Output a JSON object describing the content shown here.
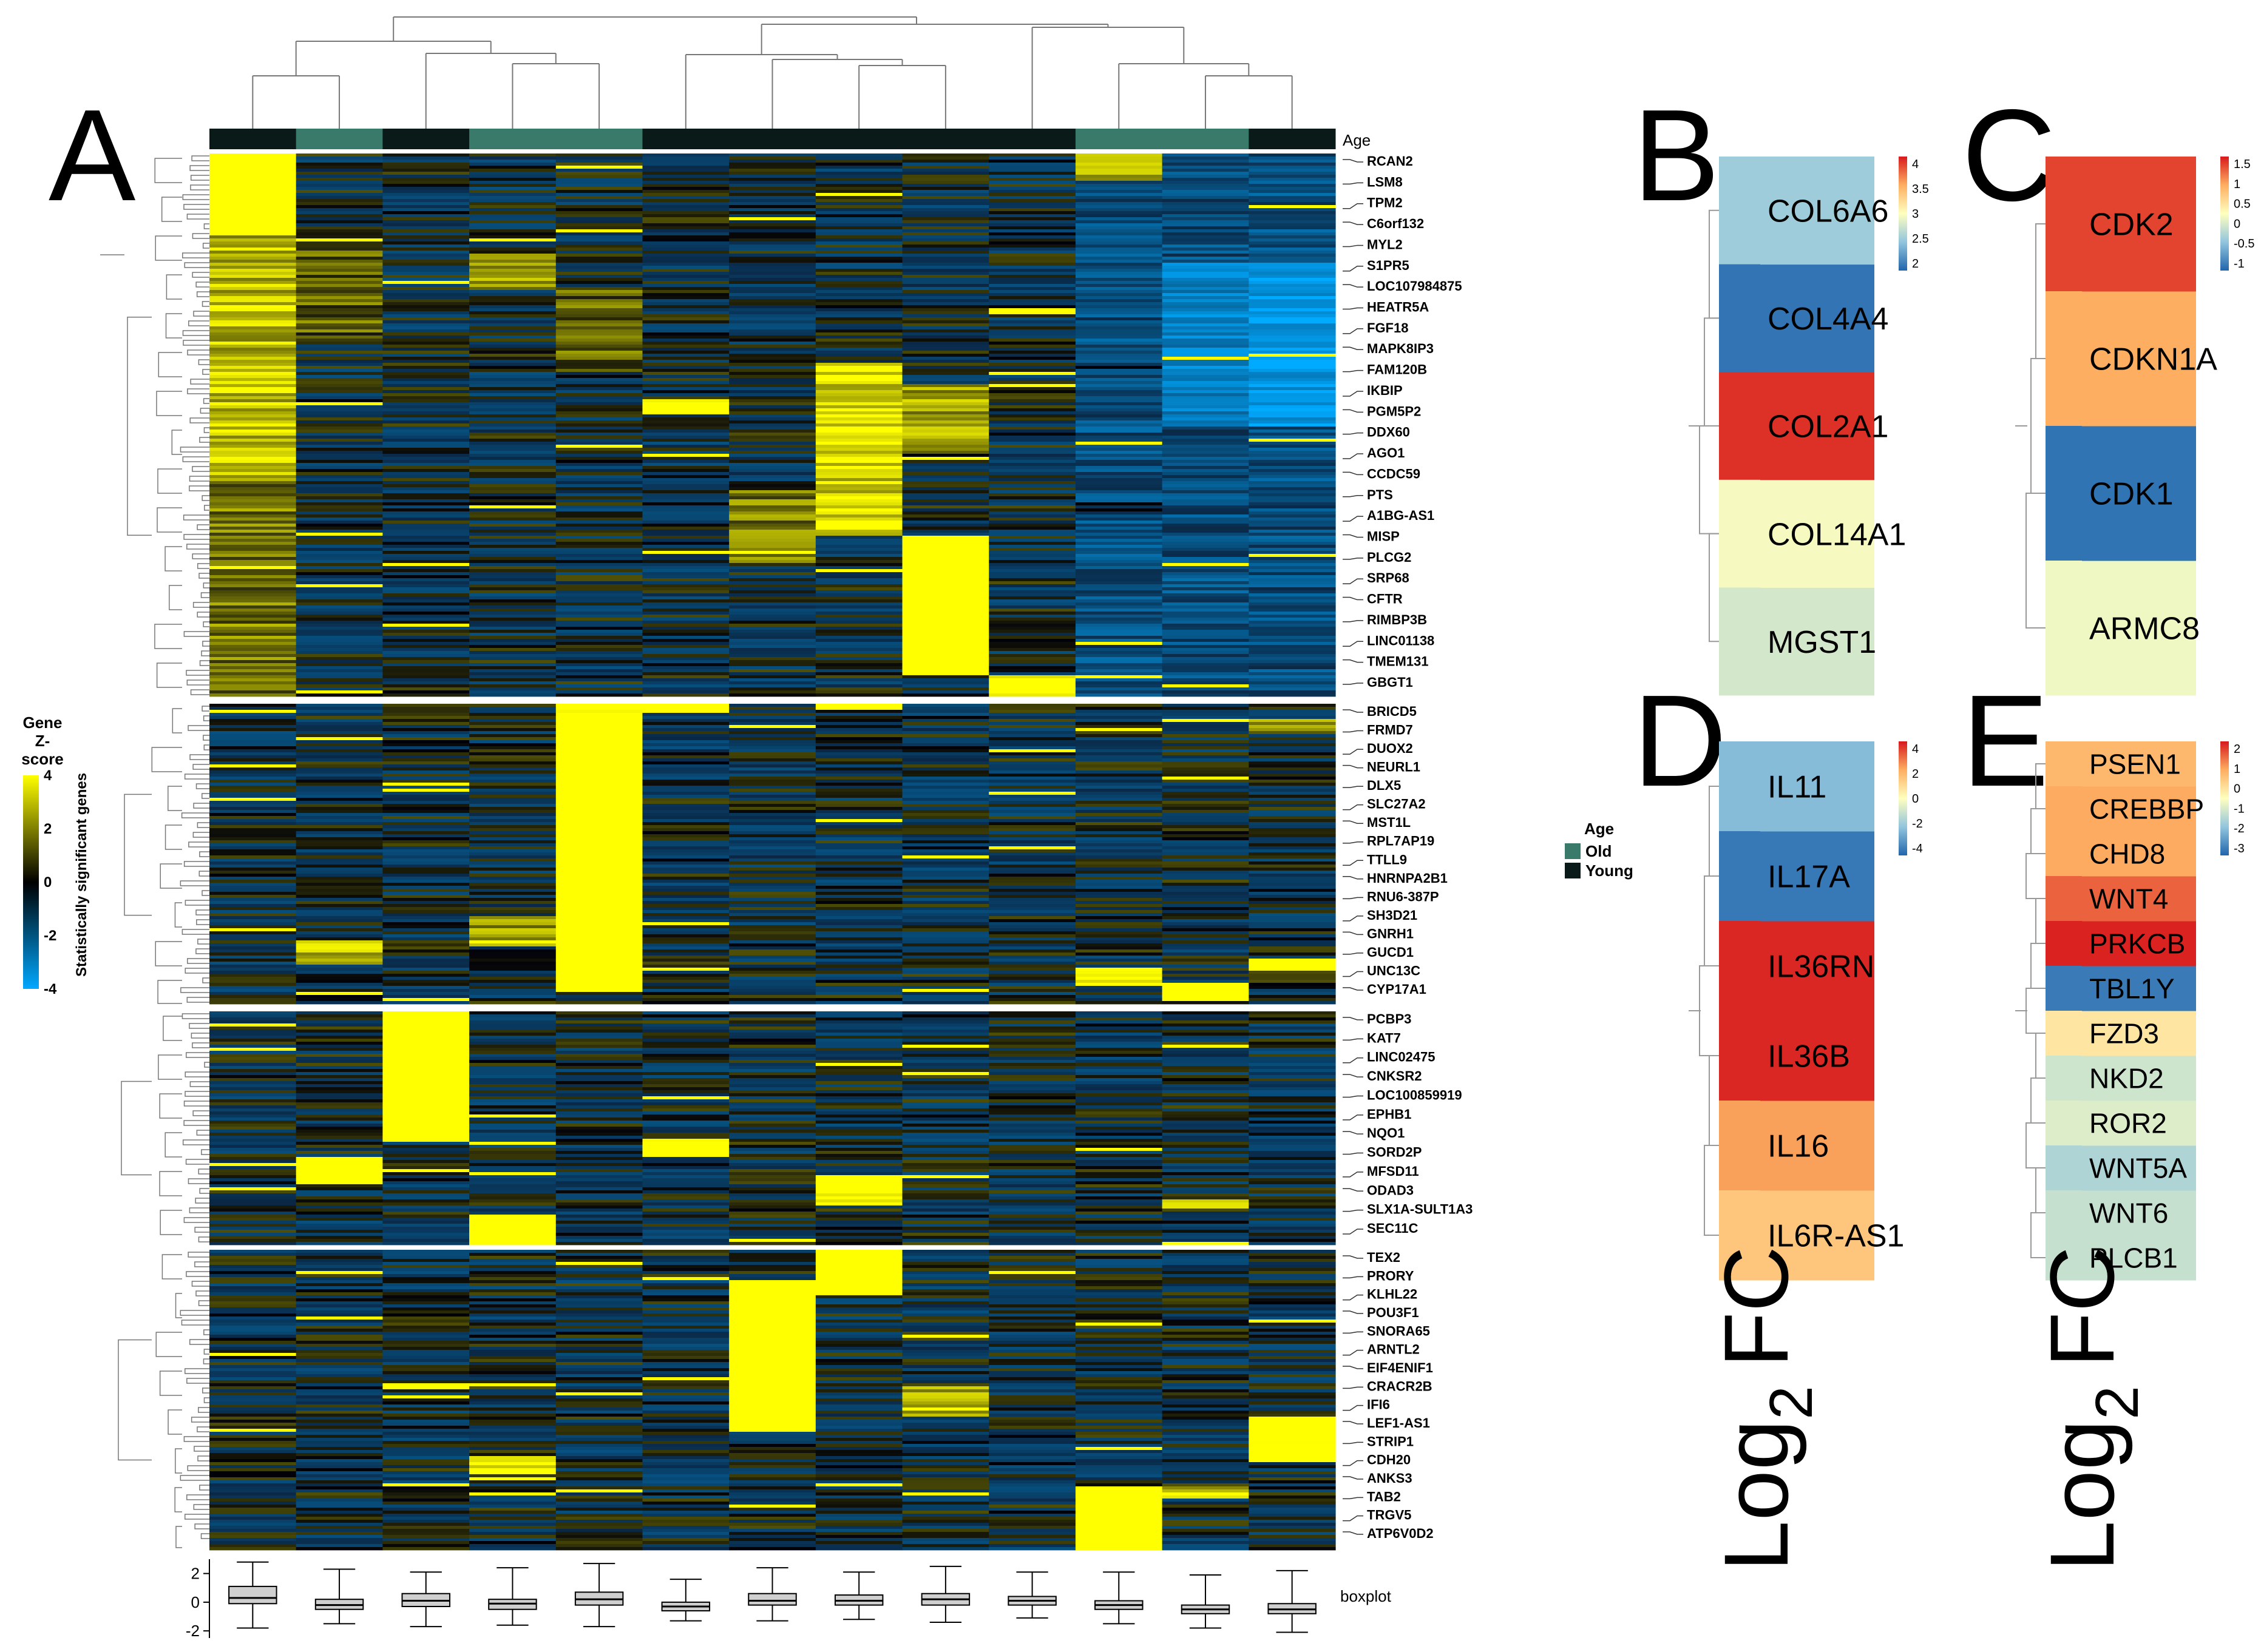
{
  "figure": {
    "panel_letters": [
      "A",
      "B",
      "C",
      "D",
      "E"
    ],
    "axis_title": "Log",
    "axis_subscript": "2",
    "axis_suffix": "FC",
    "age_track_label": "Age",
    "boxplot_label": "boxplot"
  },
  "colors": {
    "old": "#3a7a6b",
    "young": "#0a1a18",
    "heat_low": "#00a8ff",
    "heat_mid": "#000000",
    "heat_high": "#ffff00"
  },
  "chart_data": [
    {
      "type": "heatmap",
      "panel": "A",
      "colorbar_title_lines": [
        "Gene",
        "Z-",
        "score"
      ],
      "colorbar_ticks": [
        "4",
        "2",
        "0",
        "-2",
        "-4"
      ],
      "side_label": "Statistically significant genes",
      "legend": {
        "title": "Age",
        "entries": [
          "Old",
          "Young"
        ]
      },
      "sample_groups": [
        "Young",
        "Old",
        "Young",
        "Old",
        "Old",
        "Young",
        "Young",
        "Young",
        "Young",
        "Young",
        "Old",
        "Old",
        "Young"
      ],
      "clusters": [
        {
          "genes": [
            "RCAN2",
            "LSM8",
            "TPM2",
            "C6orf132",
            "MYL2",
            "S1PR5",
            "LOC107984875",
            "HEATR5A",
            "FGF18",
            "MAPK8IP3",
            "FAM120B",
            "IKBIP",
            "PGM5P2",
            "DDX60",
            "AGO1",
            "CCDC59",
            "PTS",
            "A1BG-AS1",
            "MISP",
            "PLCG2",
            "SRP68",
            "CFTR",
            "RIMBP3B",
            "LINC01138",
            "TMEM131",
            "GBGT1"
          ]
        },
        {
          "genes": [
            "BRICD5",
            "FRMD7",
            "DUOX2",
            "NEURL1",
            "DLX5",
            "SLC27A2",
            "MST1L",
            "RPL7AP19",
            "TTLL9",
            "HNRNPA2B1",
            "RNU6-387P",
            "SH3D21",
            "GNRH1",
            "GUCD1",
            "UNC13C",
            "CYP17A1"
          ]
        },
        {
          "genes": [
            "PCBP3",
            "KAT7",
            "LINC02475",
            "CNKSR2",
            "LOC100859919",
            "EPHB1",
            "NQO1",
            "SORD2P",
            "MFSD11",
            "ODAD3",
            "SLX1A-SULT1A3",
            "SEC11C"
          ]
        },
        {
          "genes": [
            "TEX2",
            "PRORY",
            "KLHL22",
            "POU3F1",
            "SNORA65",
            "ARNTL2",
            "EIF4ENIF1",
            "CRACR2B",
            "IFI6",
            "LEF1-AS1",
            "STRIP1",
            "CDH20",
            "ANKS3",
            "TAB2",
            "TRGV5",
            "ATP6V0D2"
          ]
        }
      ],
      "boxplot": {
        "yticks": [
          "2",
          "0",
          "-2"
        ],
        "ylim": [
          -2.5,
          3
        ],
        "medians": [
          0.3,
          -0.2,
          0.1,
          -0.1,
          0.2,
          -0.3,
          0.1,
          0.1,
          0.2,
          0.1,
          -0.2,
          -0.5,
          -0.5
        ],
        "q1": [
          -0.1,
          -0.5,
          -0.3,
          -0.5,
          -0.2,
          -0.6,
          -0.2,
          -0.2,
          -0.2,
          -0.2,
          -0.5,
          -0.8,
          -0.8
        ],
        "q3": [
          1.1,
          0.2,
          0.6,
          0.2,
          0.7,
          0.0,
          0.6,
          0.5,
          0.6,
          0.4,
          0.1,
          -0.2,
          -0.1
        ],
        "whisker_low": [
          -1.8,
          -1.5,
          -1.7,
          -1.6,
          -1.7,
          -1.3,
          -1.3,
          -1.2,
          -1.4,
          -1.1,
          -1.5,
          -1.8,
          -2.1
        ],
        "whisker_high": [
          2.8,
          2.3,
          2.1,
          2.4,
          2.7,
          1.6,
          2.4,
          2.1,
          2.5,
          2.1,
          2.1,
          1.9,
          2.2
        ]
      }
    },
    {
      "type": "heatmap",
      "panel": "B",
      "genes": [
        "COL6A6",
        "COL4A4",
        "COL2A1",
        "COL14A1",
        "MGST1"
      ],
      "values": [
        2.6,
        2.0,
        4.3,
        3.1,
        2.9
      ],
      "scale_ticks": [
        "4",
        "3.5",
        "3",
        "2.5",
        "2"
      ],
      "vmin": 1.9,
      "vmax": 4.4
    },
    {
      "type": "heatmap",
      "panel": "C",
      "genes": [
        "CDK2",
        "CDKN1A",
        "CDK1",
        "ARMC8"
      ],
      "values": [
        1.4,
        0.9,
        -1.1,
        0.1
      ],
      "scale_ticks": [
        "1.5",
        "1",
        "0.5",
        "0",
        "-0.5",
        "-1"
      ],
      "vmin": -1.2,
      "vmax": 1.6
    },
    {
      "type": "heatmap",
      "panel": "D",
      "genes": [
        "IL11",
        "IL17A",
        "IL36RN",
        "IL36B",
        "IL16",
        "IL6R-AS1"
      ],
      "values": [
        -2.3,
        -3.8,
        4.0,
        4.0,
        2.3,
        1.5
      ],
      "scale_ticks": [
        "4",
        "2",
        "0",
        "-2",
        "-4"
      ],
      "vmin": -4.2,
      "vmax": 4.2
    },
    {
      "type": "heatmap",
      "panel": "E",
      "genes": [
        "PSEN1",
        "CREBBP",
        "CHD8",
        "WNT4",
        "PRKCB",
        "TBL1Y",
        "FZD3",
        "NKD2",
        "ROR2",
        "WNT5A",
        "WNT6",
        "PLCB1"
      ],
      "values": [
        0.8,
        1.0,
        1.0,
        1.7,
        2.3,
        -3.0,
        0.0,
        -1.1,
        -0.9,
        -1.5,
        -1.2,
        -1.2
      ],
      "scale_ticks": [
        "2",
        "1",
        "0",
        "-1",
        "-2",
        "-3"
      ],
      "vmin": -3.3,
      "vmax": 2.4
    }
  ]
}
